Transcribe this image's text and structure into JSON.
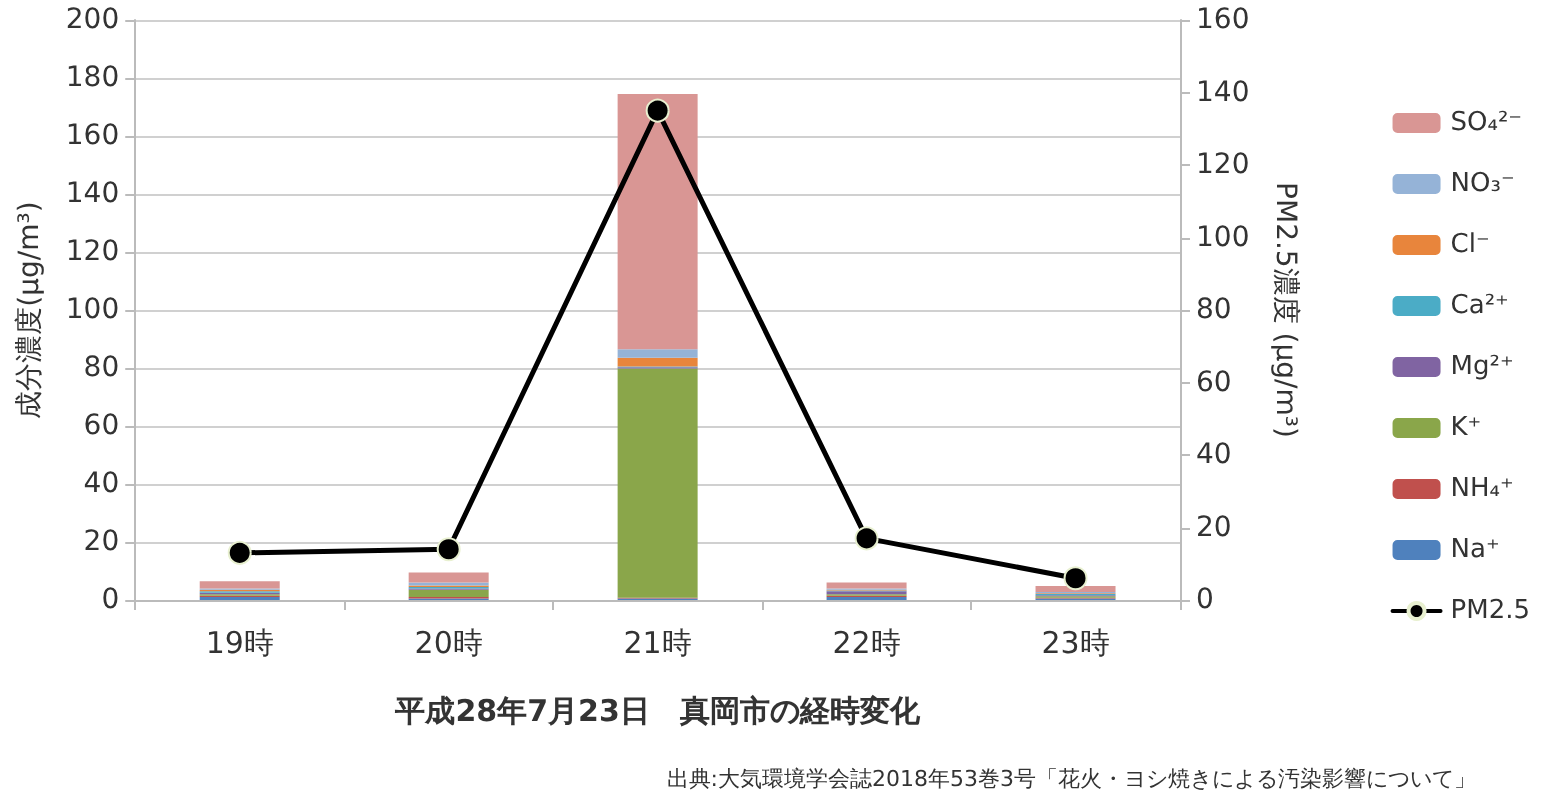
{
  "chart_data": {
    "type": "bar",
    "stacked": true,
    "xlabel": "平成28年7月23日　真岡市の経時変化",
    "ylabel": "成分濃度(µg/m³)",
    "y2label": "PM2.5濃度 (µg/m³)",
    "annotations": [
      "出典:大気環境学会誌2018年53巻3号「花火・ヨシ焼きによる汚染影響について」"
    ],
    "categories": [
      "19時",
      "20時",
      "21時",
      "22時",
      "23時"
    ],
    "series": [
      {
        "name": "Na⁺",
        "color": "#4f81bd",
        "values": [
          1,
          0.5,
          0.5,
          1,
          0.5
        ]
      },
      {
        "name": "NH₄⁺",
        "color": "#c0504d",
        "values": [
          0.5,
          0.5,
          0.3,
          0.5,
          0.3
        ]
      },
      {
        "name": "K⁺",
        "color": "#8aa64a",
        "values": [
          0.5,
          2.5,
          79,
          0.5,
          0.5
        ]
      },
      {
        "name": "Mg²⁺",
        "color": "#8064a2",
        "values": [
          0.5,
          0.5,
          0.5,
          1,
          0.3
        ]
      },
      {
        "name": "Ca²⁺",
        "color": "#4bacc6",
        "values": [
          0.5,
          0.5,
          0.2,
          0.3,
          0.5
        ]
      },
      {
        "name": "Cl⁻",
        "color": "#e8853c",
        "values": [
          0.5,
          0.5,
          3,
          0.2,
          0.2
        ]
      },
      {
        "name": "NO₃⁻",
        "color": "#95b3d7",
        "values": [
          0.5,
          1,
          3,
          0.5,
          0.5
        ]
      },
      {
        "name": "SO₄²⁻",
        "color": "#d99694",
        "values": [
          2.5,
          3.5,
          88,
          2,
          2
        ]
      },
      {
        "name": "PM2.5",
        "type": "line",
        "axis": "y2",
        "color": "#000000",
        "marker": "circle",
        "line_style": "solid",
        "values": [
          13,
          14,
          135,
          17,
          6
        ]
      }
    ],
    "ylim": [
      0,
      200
    ],
    "yticks": [
      0,
      20,
      40,
      60,
      80,
      100,
      120,
      140,
      160,
      180,
      200
    ],
    "y2lim": [
      0,
      160
    ],
    "y2ticks": [
      0,
      20,
      40,
      60,
      80,
      100,
      120,
      140,
      160
    ],
    "grid": "y",
    "legend": "right"
  }
}
